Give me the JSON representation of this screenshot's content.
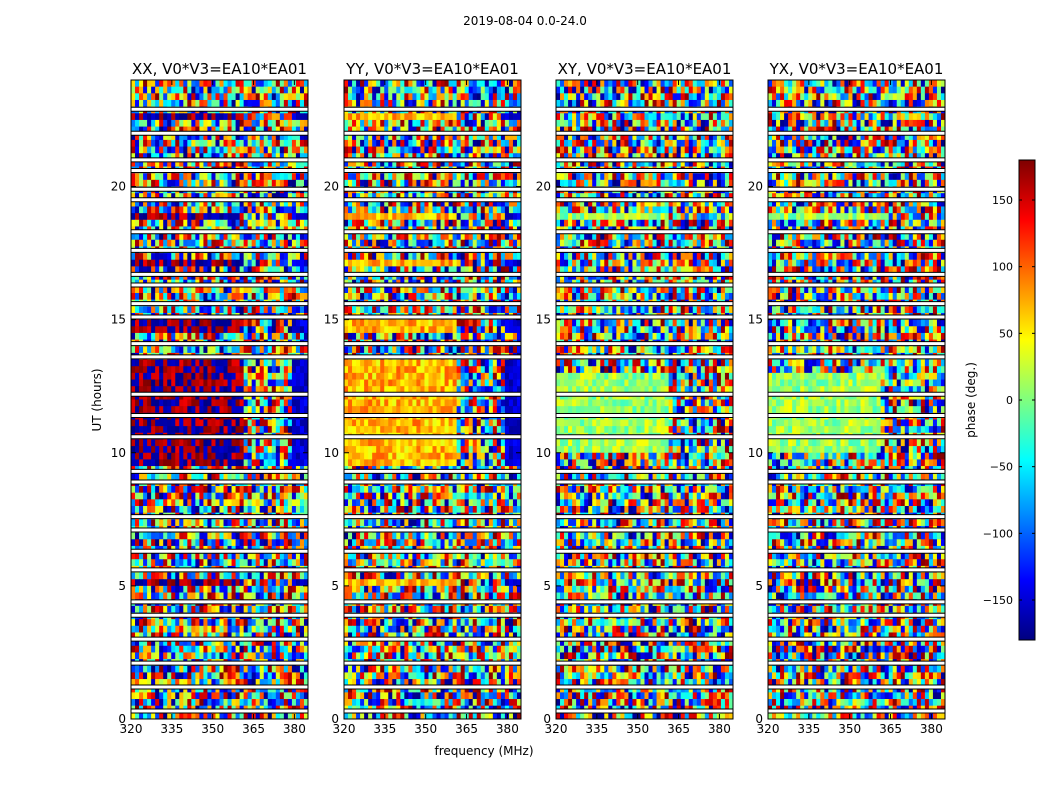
{
  "title": "2019-08-04 0.0-24.0",
  "chart_data": {
    "type": "heatmap",
    "title": "2019-08-04 0.0-24.0",
    "xlabel": "frequency (MHz)",
    "ylabel": "UT (hours)",
    "xlim": [
      320,
      385
    ],
    "ylim": [
      0,
      24
    ],
    "xticks": [
      320,
      335,
      350,
      365,
      380
    ],
    "yticks": [
      0,
      5,
      10,
      15,
      20
    ],
    "colorbar": {
      "label": "phase (deg.)",
      "range": [
        -180,
        180
      ],
      "ticks": [
        -150,
        -100,
        -50,
        0,
        50,
        100,
        150
      ],
      "tick_labels": [
        "−150",
        "−100",
        "−50",
        "0",
        "50",
        "100",
        "150"
      ],
      "colormap": "jet",
      "colors": [
        "#00007f",
        "#0000ff",
        "#007fff",
        "#00ffff",
        "#7fff7f",
        "#ffff00",
        "#ff7f00",
        "#ff0000",
        "#7f0000"
      ]
    },
    "panels": [
      {
        "name": "xx",
        "title": "XX, V0*V3=EA10*EA01",
        "coherent_phase_deg": 175,
        "coherent_rows_ut": [
          [
            9.5,
            13.5
          ],
          [
            4.95,
            5.25
          ],
          [
            18.8,
            19.1
          ],
          [
            14.6,
            14.9
          ],
          [
            17.0,
            17.3
          ],
          [
            22.6,
            22.8
          ]
        ],
        "band_edge_mhz": 362
      },
      {
        "name": "yy",
        "title": "YY, V0*V3=EA10*EA01",
        "coherent_phase_deg": 70,
        "coherent_rows_ut": [
          [
            9.5,
            13.5
          ],
          [
            4.95,
            5.25
          ],
          [
            18.8,
            19.1
          ],
          [
            14.6,
            14.9
          ],
          [
            17.0,
            17.3
          ],
          [
            22.6,
            22.8
          ]
        ],
        "band_edge_mhz": 362
      },
      {
        "name": "xy",
        "title": "XY, V0*V3=EA10*EA01",
        "coherent_phase_deg": 10,
        "coherent_rows_ut": [
          [
            10.0,
            13.0
          ],
          [
            18.8,
            19.1
          ]
        ],
        "band_edge_mhz": 362
      },
      {
        "name": "yx",
        "title": "YX, V0*V3=EA10*EA01",
        "coherent_phase_deg": 10,
        "coherent_rows_ut": [
          [
            10.0,
            13.0
          ],
          [
            18.8,
            19.1
          ]
        ],
        "band_edge_mhz": 362
      }
    ],
    "flagged_rows_ut": [
      0.3,
      1.2,
      2.1,
      3.0,
      3.9,
      4.4,
      5.6,
      6.3,
      7.1,
      7.6,
      8.9,
      9.3,
      10.6,
      11.4,
      12.2,
      13.6,
      14.1,
      15.1,
      15.6,
      16.3,
      16.7,
      17.6,
      18.3,
      19.5,
      19.9,
      20.6,
      21.0,
      22.0,
      22.9
    ]
  }
}
